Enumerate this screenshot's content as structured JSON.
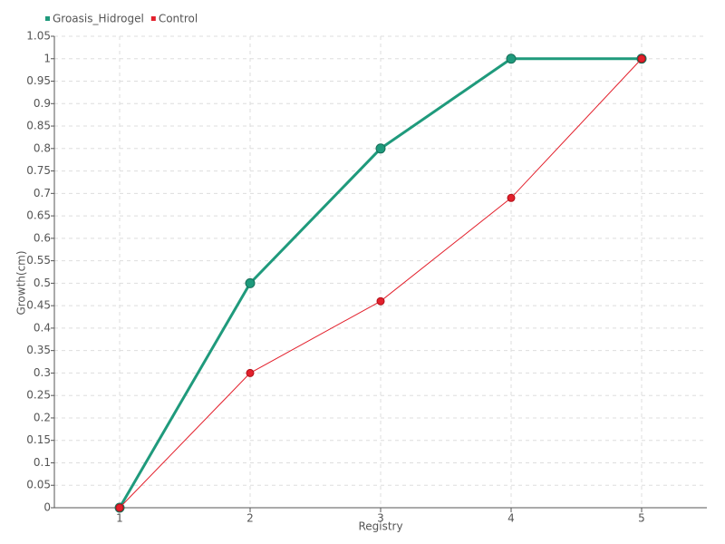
{
  "chart_data": {
    "type": "line",
    "x_label": "Registry",
    "y_label": "Growth(cm)",
    "x": [
      1,
      2,
      3,
      4,
      5
    ],
    "xlim": [
      0.5,
      5.5
    ],
    "xticks": [
      1,
      2,
      3,
      4,
      5
    ],
    "ylim": [
      0,
      1.05
    ],
    "yticks": [
      0,
      0.05,
      0.1,
      0.15,
      0.2,
      0.25,
      0.3,
      0.35,
      0.4,
      0.45,
      0.5,
      0.55,
      0.6,
      0.65,
      0.7,
      0.75,
      0.8,
      0.85,
      0.9,
      0.95,
      1,
      1.05
    ],
    "grid": true,
    "legend": "top-left",
    "series": [
      {
        "name": "Groasis_Hidrogel",
        "color": "#1f9a7c",
        "values": [
          0,
          0.5,
          0.8,
          1,
          1
        ]
      },
      {
        "name": "Control",
        "color": "#e3202c",
        "values": [
          0,
          0.3,
          0.46,
          0.69,
          1
        ]
      }
    ]
  }
}
